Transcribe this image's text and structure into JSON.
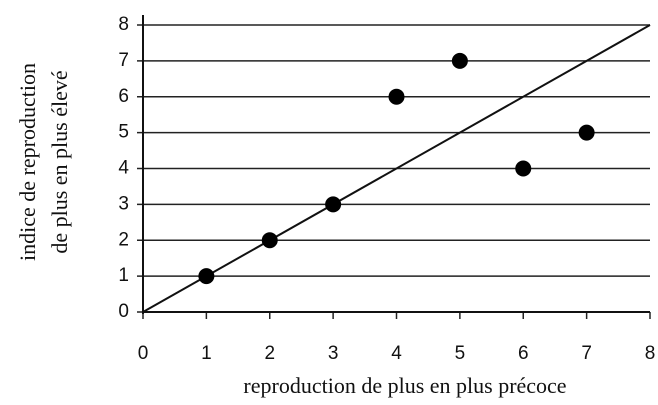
{
  "chart_data": {
    "type": "scatter",
    "x_label": "reproduction de plus en plus précoce",
    "y_label": [
      "indice de reproduction",
      "de plus en plus élevé"
    ],
    "x": [
      1,
      2,
      3,
      4,
      5,
      6,
      7
    ],
    "values": [
      1,
      2,
      3,
      6,
      7,
      4,
      5
    ],
    "color": "#000000",
    "reference_line": {
      "x": [
        0,
        8
      ],
      "values": [
        0,
        8
      ]
    },
    "xlim": [
      0,
      8
    ],
    "ylim": [
      0,
      8
    ],
    "xticks": [
      0,
      1,
      2,
      3,
      4,
      5,
      6,
      7,
      8
    ],
    "yticks": [
      0,
      1,
      2,
      3,
      4,
      5,
      6,
      7,
      8
    ],
    "grid": true
  }
}
